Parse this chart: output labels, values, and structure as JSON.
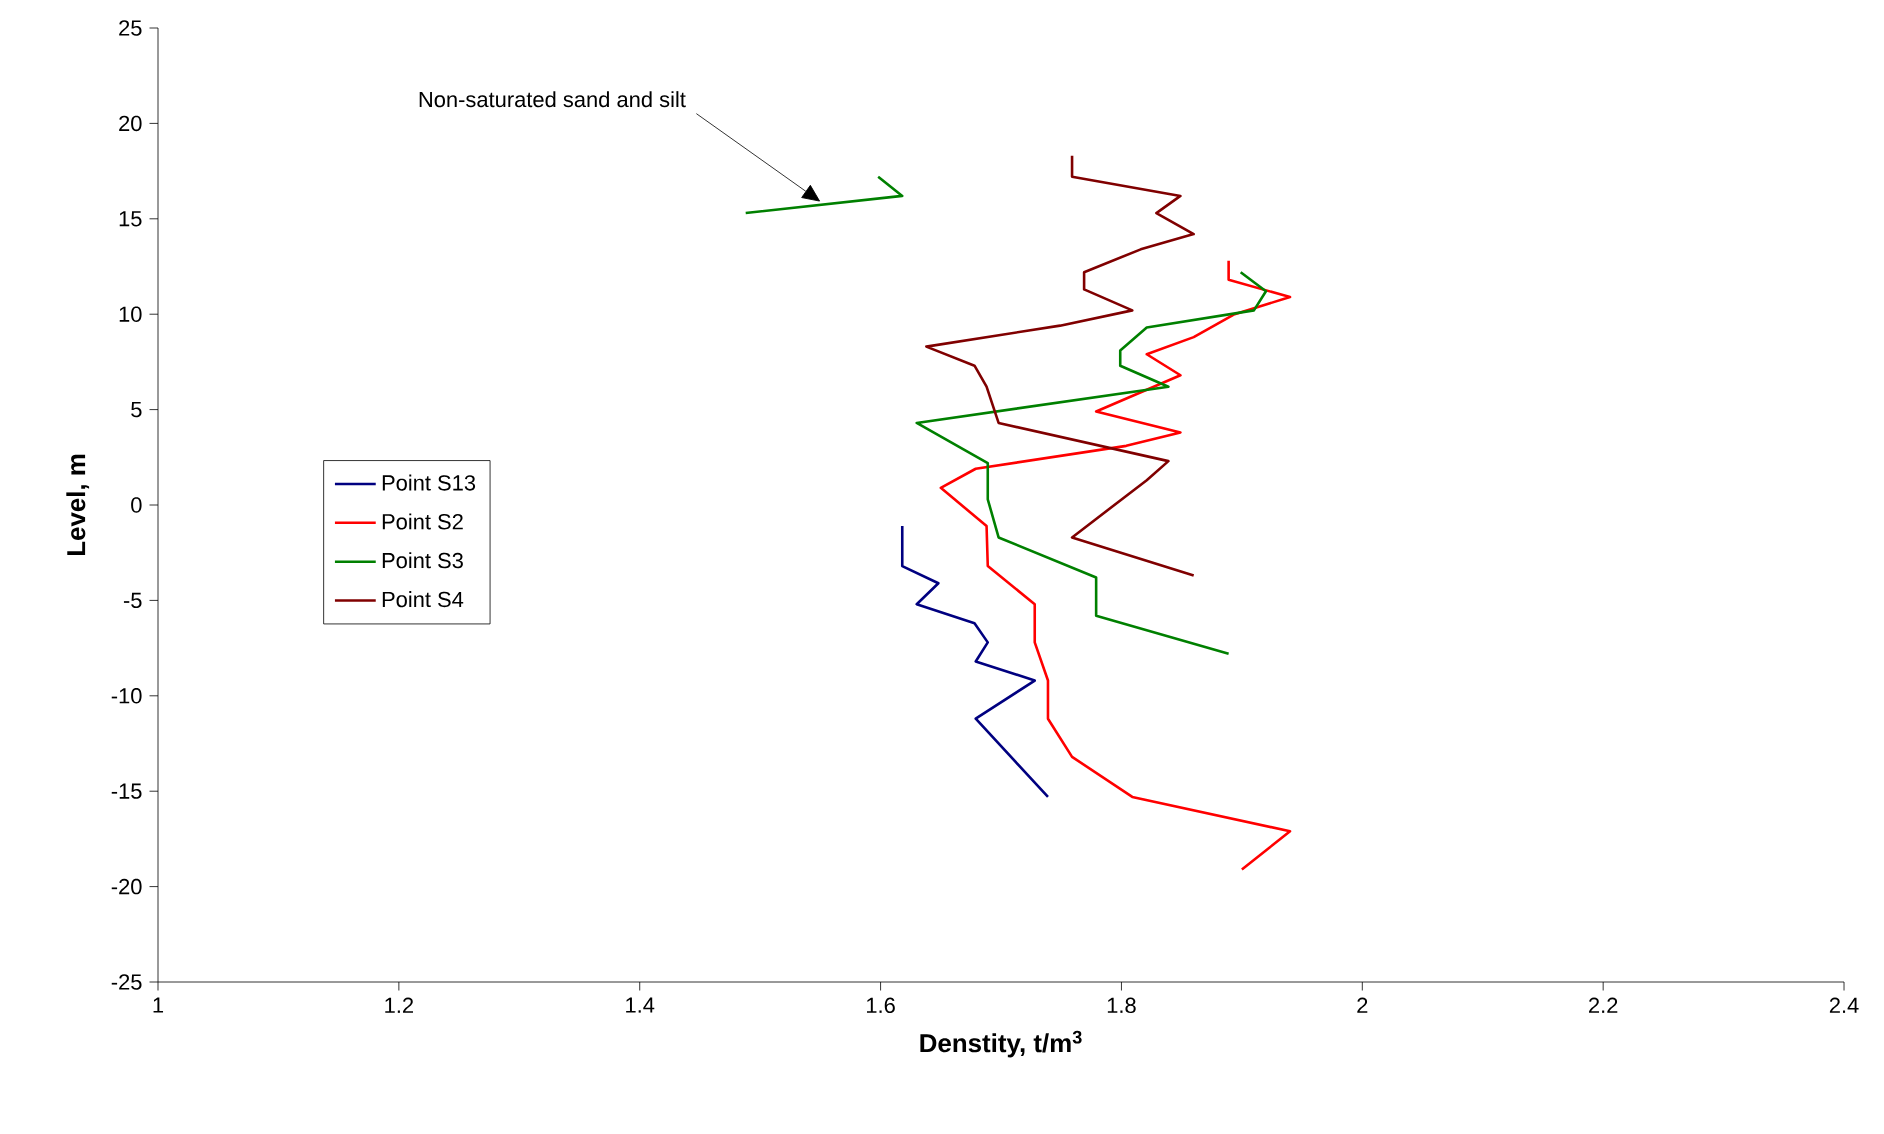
{
  "chart_data": {
    "type": "line",
    "xlabel": "Denstity, t/m$^{3}$",
    "ylabel": "Level, m",
    "xlim": [
      1,
      2.4
    ],
    "ylim": [
      -25,
      25
    ],
    "xticks": [
      1,
      1.2,
      1.4,
      1.6,
      1.8,
      2,
      2.2,
      2.4
    ],
    "yticks": [
      -25,
      -20,
      -15,
      -10,
      -5,
      0,
      5,
      10,
      15,
      20,
      25
    ],
    "grid": false,
    "legend": "left",
    "marker": "none",
    "line_style": "solid",
    "annotations": [
      {
        "text": "Non-saturated sand and silt",
        "x": 1.55,
        "y": 15.9
      }
    ],
    "series": [
      {
        "name": "Point S13",
        "color": "#000080",
        "x": [
          1.618,
          1.618,
          1.648,
          1.63,
          1.678,
          1.689,
          1.679,
          1.728,
          1.679,
          1.739
        ],
        "values": [
          -1.1,
          -3.2,
          -4.1,
          -5.2,
          -6.2,
          -7.2,
          -8.2,
          -9.2,
          -11.2,
          -15.3
        ]
      },
      {
        "name": "Point S2",
        "color": "#ff0000",
        "x": [
          1.889,
          1.889,
          1.94,
          1.894,
          1.86,
          1.821,
          1.849,
          1.779,
          1.849,
          1.804,
          1.679,
          1.65,
          1.688,
          1.689,
          1.728,
          1.728,
          1.739,
          1.739,
          1.759,
          1.809,
          1.94,
          1.9
        ],
        "values": [
          12.8,
          11.8,
          10.9,
          10.0,
          8.8,
          7.9,
          6.8,
          4.9,
          3.8,
          3.1,
          1.9,
          0.9,
          -1.1,
          -3.2,
          -5.2,
          -7.2,
          -9.2,
          -11.2,
          -13.2,
          -15.3,
          -17.1,
          -19.1
        ]
      },
      {
        "name": "Point S3",
        "color": "#008000",
        "x": [
          1.598,
          1.618,
          1.488,
          null,
          1.899,
          1.92,
          1.91,
          1.821,
          1.799,
          1.799,
          1.839,
          1.63,
          1.689,
          1.689,
          1.698,
          1.779,
          1.779,
          1.889
        ],
        "values": [
          17.2,
          16.2,
          15.3,
          null,
          12.2,
          11.2,
          10.2,
          9.3,
          8.1,
          7.3,
          6.2,
          4.3,
          2.2,
          0.3,
          -1.7,
          -3.8,
          -5.8,
          -7.8
        ]
      },
      {
        "name": "Point S4",
        "color": "#800000",
        "x": [
          1.759,
          1.759,
          1.849,
          1.829,
          1.86,
          1.816,
          1.769,
          1.769,
          1.809,
          1.749,
          1.638,
          1.678,
          1.688,
          1.698,
          1.839,
          1.821,
          1.759,
          1.86
        ],
        "values": [
          18.3,
          17.2,
          16.2,
          15.3,
          14.2,
          13.4,
          12.2,
          11.3,
          10.2,
          9.4,
          8.3,
          7.3,
          6.2,
          4.3,
          2.3,
          1.3,
          -1.7,
          -3.7
        ]
      }
    ]
  }
}
